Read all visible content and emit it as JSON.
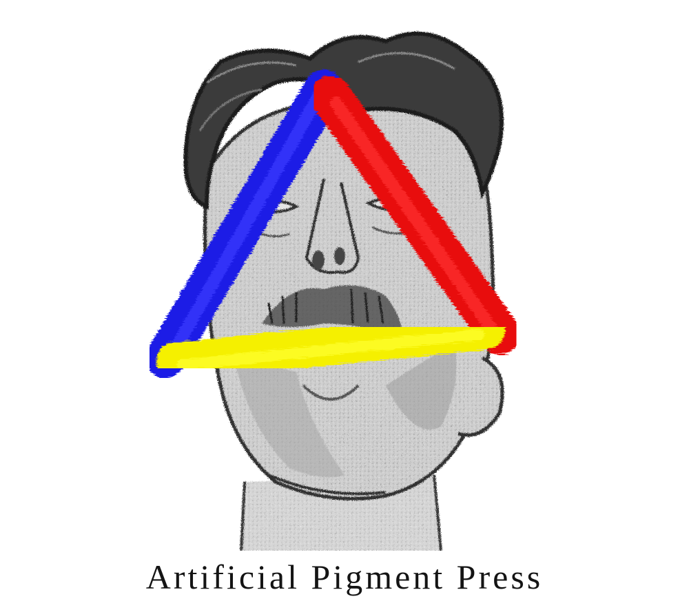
{
  "press": {
    "name": "Artificial Pigment Press"
  },
  "logo": {
    "subject": "pencil-sketch-face",
    "colors": {
      "blue_stroke": "#1a1ae6",
      "red_stroke": "#e81010",
      "yellow_stroke": "#f5f000",
      "sketch_ink": "#2a2a2a",
      "sketch_shade": "#b8b8b8"
    }
  }
}
